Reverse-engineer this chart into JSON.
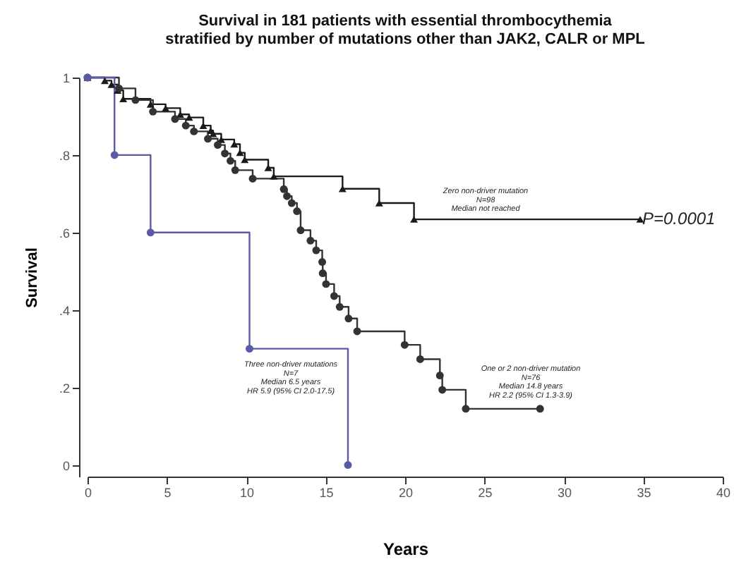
{
  "chart_data": {
    "type": "step",
    "title": "Survival in 181 patients with essential thrombocythemia\nstratified by number of mutations other than JAK2, CALR or MPL",
    "xlabel": "Years",
    "ylabel": "Survival",
    "series": [
      {
        "color": "#1a1a1a",
        "marker": "triangle",
        "x": [
          0,
          1.09,
          1.51,
          1.9,
          2.25,
          3.97,
          4.92,
          5.84,
          6.4,
          7.29,
          7.76,
          7.91,
          8.42,
          9.24,
          9.6,
          9.9,
          11.38,
          11.73,
          16.06,
          18.37,
          20.56,
          34.8
        ],
        "values": [
          1,
          0.992,
          0.982,
          0.967,
          0.945,
          0.931,
          0.921,
          0.905,
          0.897,
          0.876,
          0.863,
          0.855,
          0.84,
          0.828,
          0.806,
          0.788,
          0.767,
          0.745,
          0.713,
          0.676,
          0.634,
          0.634
        ]
      },
      {
        "color": "#333333",
        "marker": "circle",
        "x": [
          0,
          1.98,
          3.02,
          4.12,
          5.51,
          6.19,
          6.7,
          7.58,
          8.2,
          8.65,
          9.0,
          9.3,
          10.4,
          12.36,
          12.56,
          12.86,
          13.19,
          13.42,
          14.04,
          14.4,
          14.78,
          14.81,
          15.02,
          15.53,
          15.88,
          16.44,
          16.98,
          19.97,
          20.95,
          22.19,
          22.34,
          23.82,
          28.5
        ],
        "values": [
          1,
          0.972,
          0.942,
          0.912,
          0.893,
          0.876,
          0.861,
          0.842,
          0.826,
          0.804,
          0.785,
          0.761,
          0.739,
          0.712,
          0.694,
          0.676,
          0.655,
          0.606,
          0.579,
          0.554,
          0.524,
          0.495,
          0.467,
          0.436,
          0.408,
          0.378,
          0.345,
          0.31,
          0.273,
          0.231,
          0.194,
          0.145,
          0.145
        ]
      },
      {
        "color": "#5a5aa8",
        "marker": "circle",
        "x": [
          0,
          1.7,
          3.97,
          10.2,
          16.4
        ],
        "values": [
          1,
          0.8,
          0.6,
          0.3,
          0
        ]
      }
    ],
    "annotations": [
      "Zero non-driver mutation\nN=98\nMedian not reached",
      "One or 2 non-driver mutation\nN=76\nMedian 14.8 years\nHR 2.2 (95% CI 1.3-3.9)",
      "Three non-driver mutations\nN=7\nMedian 6.5 years\nHR 5.9 (95% CI 2.0-17.5)",
      "P=0.0001"
    ],
    "xlim": [
      0,
      40
    ],
    "ylim": [
      -0.03,
      1.0
    ],
    "xticks": [
      0,
      5,
      10,
      15,
      20,
      25,
      30,
      35,
      40
    ],
    "yticks": [
      {
        "value": 0,
        "label": "0"
      },
      {
        "value": 0.2,
        "label": ".2"
      },
      {
        "value": 0.4,
        "label": ".4"
      },
      {
        "value": 0.6,
        "label": ".6"
      },
      {
        "value": 0.8,
        "label": ".8"
      },
      {
        "value": 1,
        "label": "1"
      }
    ],
    "grid": false,
    "legend": false,
    "line_style": "solid"
  }
}
